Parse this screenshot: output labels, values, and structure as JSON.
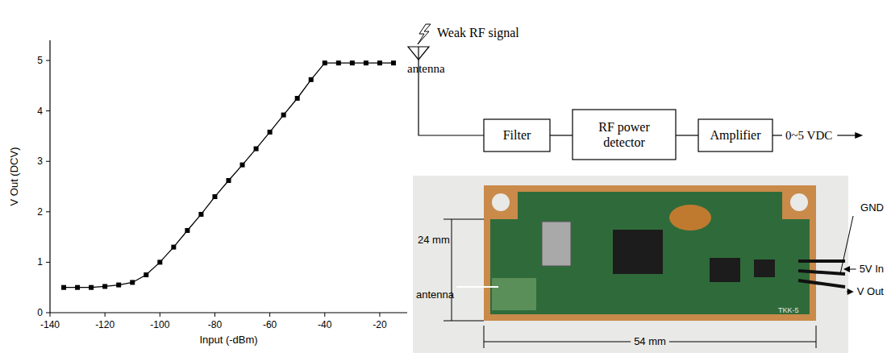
{
  "chart_data": {
    "type": "line",
    "x_label": "Input (-dBm)",
    "y_label": "V Out (DCV)",
    "x": [
      -135,
      -130,
      -125,
      -120,
      -115,
      -110,
      -105,
      -100,
      -95,
      -90,
      -85,
      -80,
      -75,
      -70,
      -65,
      -60,
      -55,
      -50,
      -45,
      -40,
      -35,
      -30,
      -25,
      -20,
      -15
    ],
    "values": [
      0.5,
      0.5,
      0.5,
      0.52,
      0.55,
      0.6,
      0.75,
      1.0,
      1.3,
      1.63,
      1.95,
      2.3,
      2.62,
      2.93,
      3.25,
      3.58,
      3.92,
      4.25,
      4.62,
      4.95,
      4.95,
      4.95,
      4.95,
      4.95,
      4.95
    ],
    "color": "#000000",
    "marker": "square",
    "line_style": "solid",
    "xlim": [
      -140,
      -10
    ],
    "ylim": [
      0,
      5.4
    ],
    "xticks": [
      -140,
      -120,
      -100,
      -80,
      -60,
      -40,
      -20
    ],
    "yticks": [
      0,
      1,
      2,
      3,
      4,
      5
    ],
    "grid": false
  },
  "diagram": {
    "signal_label": "Weak RF signal",
    "antenna_label": "antenna",
    "blocks": [
      "Filter",
      "RF power detector",
      "Amplifier"
    ],
    "output_label": "0~5 VDC"
  },
  "photo": {
    "height_label": "24 mm",
    "width_label": "54 mm",
    "antenna_label": "antenna",
    "pins": [
      "GND",
      "5V In",
      "V Out"
    ],
    "board_label": "TKK-5"
  }
}
